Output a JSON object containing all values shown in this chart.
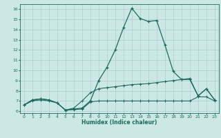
{
  "xlabel": "Humidex (Indice chaleur)",
  "bg_color": "#cce8e4",
  "grid_color": "#aacfcc",
  "line_color": "#1a6b5a",
  "xlim": [
    -0.5,
    23.5
  ],
  "ylim": [
    5.8,
    16.5
  ],
  "xticks": [
    0,
    1,
    2,
    3,
    4,
    5,
    6,
    7,
    8,
    9,
    10,
    11,
    12,
    13,
    14,
    15,
    16,
    17,
    18,
    19,
    20,
    21,
    22,
    23
  ],
  "yticks": [
    6,
    7,
    8,
    9,
    10,
    11,
    12,
    13,
    14,
    15,
    16
  ],
  "line1_x": [
    0,
    1,
    2,
    3,
    4,
    5,
    6,
    7,
    8,
    9,
    10,
    11,
    12,
    13,
    14,
    15,
    16,
    17,
    18,
    19,
    20,
    21,
    22,
    23
  ],
  "line1_y": [
    6.6,
    7.1,
    7.2,
    7.1,
    6.8,
    6.1,
    6.2,
    6.3,
    7.0,
    9.0,
    10.3,
    12.0,
    14.2,
    16.1,
    15.1,
    14.8,
    14.9,
    12.5,
    9.9,
    9.1,
    9.2,
    7.5,
    8.2,
    7.1
  ],
  "line2_x": [
    0,
    1,
    2,
    3,
    4,
    5,
    6,
    7,
    8,
    9,
    10,
    11,
    12,
    13,
    14,
    15,
    16,
    17,
    18,
    19,
    20,
    21,
    22,
    23
  ],
  "line2_y": [
    6.6,
    7.1,
    7.2,
    7.1,
    6.8,
    6.1,
    6.3,
    7.0,
    7.8,
    8.2,
    8.3,
    8.4,
    8.5,
    8.6,
    8.65,
    8.7,
    8.8,
    8.9,
    9.0,
    9.1,
    9.1,
    7.5,
    8.2,
    7.1
  ],
  "line3_x": [
    0,
    1,
    2,
    3,
    4,
    5,
    6,
    7,
    8,
    9,
    10,
    11,
    12,
    13,
    14,
    15,
    16,
    17,
    18,
    19,
    20,
    21,
    22,
    23
  ],
  "line3_y": [
    6.6,
    7.0,
    7.1,
    7.0,
    6.8,
    6.1,
    6.15,
    6.2,
    6.9,
    7.0,
    7.0,
    7.0,
    7.0,
    7.0,
    7.0,
    7.0,
    7.0,
    7.0,
    7.0,
    7.0,
    7.0,
    7.4,
    7.4,
    7.0
  ]
}
